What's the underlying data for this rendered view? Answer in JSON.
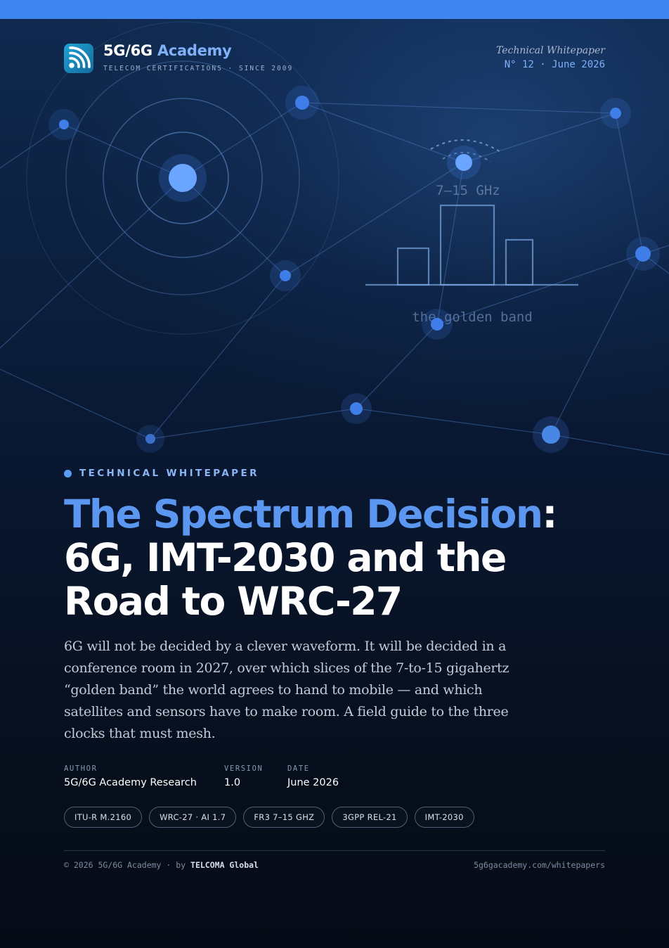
{
  "brand": {
    "name_part1": "5G/6G",
    "name_part2": "Academy",
    "tagline": "TELECOM CERTIFICATIONS · SINCE 2009",
    "logo_icon": "wifi-signal-icon"
  },
  "header": {
    "doc_type": "Technical Whitepaper",
    "issue": "N° 12 · June 2026"
  },
  "illustration": {
    "band_label": "7–15 GHz",
    "band_caption": "the golden band"
  },
  "kicker": "TECHNICAL WHITEPAPER",
  "title": {
    "accent": "The Spectrum Decision",
    "rest": ": 6G, IMT-2030 and the Road to WRC-27"
  },
  "lede": "6G will not be decided by a clever waveform. It will be decided in a conference room in 2027, over which slices of the 7-to-15 gigahertz “golden band” the world agrees to hand to mobile — and which satellites and sensors have to make room. A field guide to the three clocks that must mesh.",
  "meta": {
    "author_label": "AUTHOR",
    "author": "5G/6G Academy Research",
    "version_label": "VERSION",
    "version": "1.0",
    "date_label": "DATE",
    "date": "June 2026"
  },
  "tags": [
    "ITU-R M.2160",
    "WRC-27 · AI 1.7",
    "FR3 7–15 GHZ",
    "3GPP REL-21",
    "IMT-2030"
  ],
  "footer": {
    "copyright": "© 2026 5G/6G Academy · by",
    "publisher": "TELCOMA Global",
    "url": "5g6gacademy.com/whitepapers"
  },
  "colors": {
    "accent": "#5b97f0",
    "top_bar": "#3f86f0",
    "background_top": "#102a50",
    "background_bottom": "#050b16"
  }
}
